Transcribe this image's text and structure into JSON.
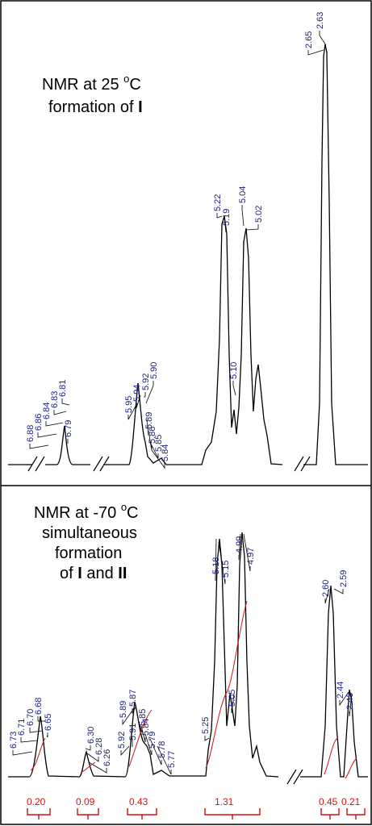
{
  "chart_data": [
    {
      "type": "line",
      "title_line1_prefix": "NMR at  25 ",
      "title_line1_sup": "o",
      "title_line1_suffix": "C",
      "title_line2_prefix": "formation of ",
      "title_line2_bold": "I",
      "peak_labels": [
        "6.88",
        "6.86",
        "6.84",
        "6.83",
        "6.81",
        "6.79",
        "5.95",
        "5.94",
        "5.92",
        "5.90",
        "5.89",
        "5.86",
        "5.85",
        "5.84",
        "5.22",
        "5.19",
        "5.10",
        "5.04",
        "5.02",
        "2.65",
        "2.63"
      ],
      "colors": {
        "spectrum": "#000000",
        "labels": "#1a1f8a"
      }
    },
    {
      "type": "line",
      "title_line1_prefix": "NMR at -70 ",
      "title_line1_sup": "o",
      "title_line1_suffix": "C",
      "title_line2": "simultaneous",
      "title_line3": "formation",
      "title_line4_prefix": "of ",
      "title_line4_bold1": "I",
      "title_line4_mid": " and ",
      "title_line4_bold2": "II",
      "peak_labels": [
        "6.73",
        "6.71",
        "6.70",
        "6.68",
        "6.65",
        "6.30",
        "6.28",
        "6.26",
        "5.92",
        "5.91",
        "5.89",
        "5.87",
        "5.85",
        "5.84",
        "5.79",
        "5.78",
        "5.77",
        "5.25",
        "5.18",
        "5.15",
        "5.05",
        "4.99",
        "4.97",
        "2.60",
        "2.59",
        "2.44",
        "2.43"
      ],
      "integrals": [
        "0.20",
        "0.09",
        "0.43",
        "1.31",
        "0.45",
        "0.21"
      ],
      "colors": {
        "spectrum": "#000000",
        "labels": "#1a1f8a",
        "integral": "#d11111"
      }
    }
  ]
}
